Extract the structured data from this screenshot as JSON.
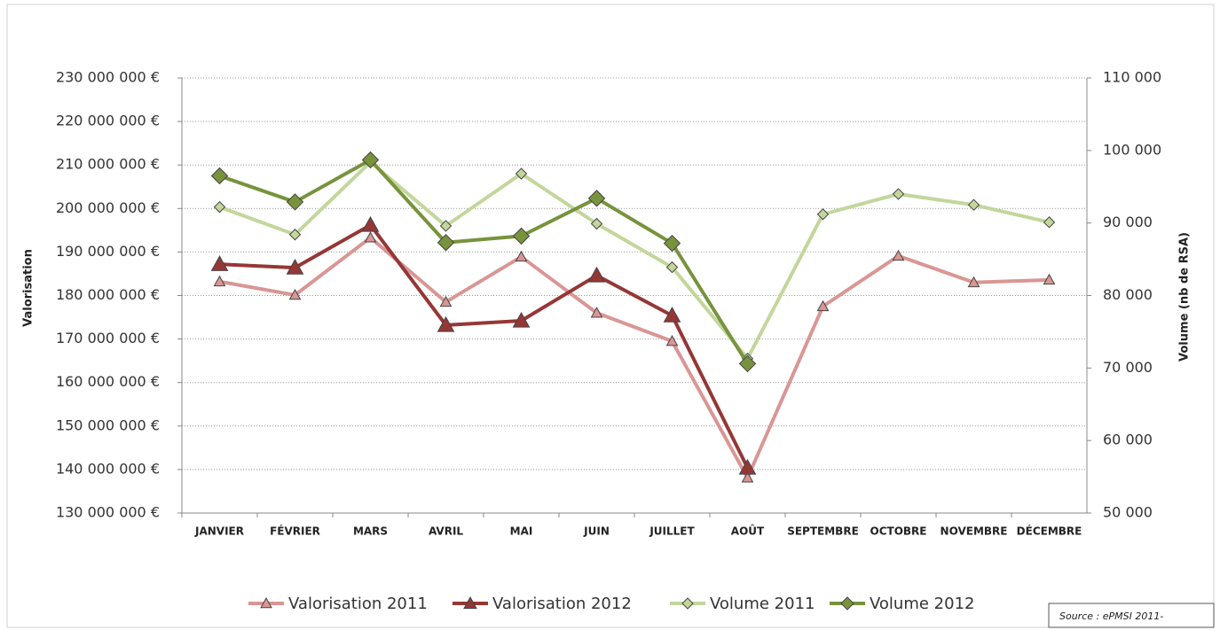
{
  "chart_data": {
    "type": "line",
    "y_label": "Valorisation",
    "y2_label": "Volume (nb de RSA)",
    "source": "Source : ePMSI 2011-",
    "categories": [
      "JANVIER",
      "FÉVRIER",
      "MARS",
      "AVRIL",
      "MAI",
      "JUIN",
      "JUILLET",
      "AOÛT",
      "SEPTEMBRE",
      "OCTOBRE",
      "NOVEMBRE",
      "DÉCEMBRE"
    ],
    "ylim": [
      130000000,
      230000000
    ],
    "yticks": [
      {
        "value": 130000000,
        "label": "130 000 000 €"
      },
      {
        "value": 140000000,
        "label": "140 000 000 €"
      },
      {
        "value": 150000000,
        "label": "150 000 000 €"
      },
      {
        "value": 160000000,
        "label": "160 000 000 €"
      },
      {
        "value": 170000000,
        "label": "170 000 000 €"
      },
      {
        "value": 180000000,
        "label": "180 000 000 €"
      },
      {
        "value": 190000000,
        "label": "190 000 000 €"
      },
      {
        "value": 200000000,
        "label": "200 000 000 €"
      },
      {
        "value": 210000000,
        "label": "210 000 000 €"
      },
      {
        "value": 220000000,
        "label": "220 000 000 €"
      },
      {
        "value": 230000000,
        "label": "230 000 000 €"
      }
    ],
    "y2lim": [
      50000,
      110000
    ],
    "y2ticks": [
      {
        "value": 50000,
        "label": "50 000"
      },
      {
        "value": 60000,
        "label": "60 000"
      },
      {
        "value": 70000,
        "label": "70 000"
      },
      {
        "value": 80000,
        "label": "80 000"
      },
      {
        "value": 90000,
        "label": "90 000"
      },
      {
        "value": 100000,
        "label": "100 000"
      },
      {
        "value": 110000,
        "label": "110 000"
      }
    ],
    "grid": true,
    "legend": "bottom",
    "series": [
      {
        "name": "Valorisation 2011",
        "color": "#d99694",
        "marker": "triangle",
        "values": [
          183200000,
          180100000,
          193300000,
          178500000,
          188900000,
          176000000,
          169500000,
          138100000,
          177500000,
          189100000,
          183000000,
          183600000
        ]
      },
      {
        "name": "Valorisation 2012",
        "color": "#953735",
        "marker": "triangle",
        "values": [
          187200000,
          186400000,
          196200000,
          173200000,
          174200000,
          184600000,
          175400000,
          140400000,
          null,
          null,
          null,
          null
        ]
      },
      {
        "name": "Volume 2011",
        "color": "#c3d69b",
        "marker": "diamond",
        "axis": "y2",
        "values": [
          92200,
          88400,
          98400,
          89600,
          96800,
          89900,
          83900,
          71300,
          91200,
          94000,
          92500,
          90100
        ]
      },
      {
        "name": "Volume 2012",
        "color": "#77933c",
        "marker": "diamond",
        "axis": "y2",
        "values": [
          96500,
          92900,
          98700,
          87300,
          88200,
          93400,
          87200,
          70600,
          null,
          null,
          null,
          null
        ]
      }
    ]
  }
}
